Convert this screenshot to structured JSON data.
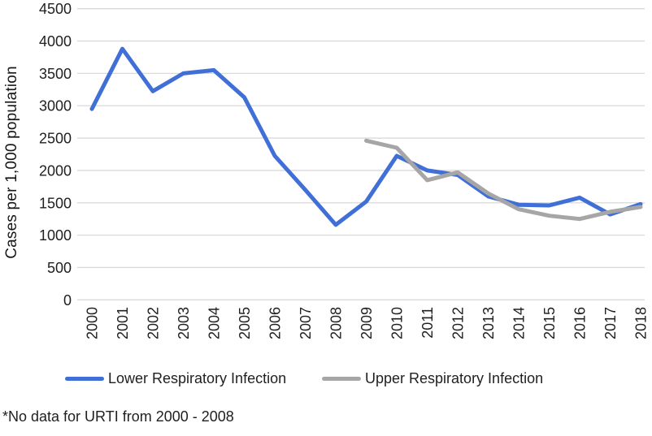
{
  "footnote": "*No data for URTI from 2000 - 2008",
  "colors": {
    "grid": "#d9d9d9",
    "text": "#1f1f1f",
    "background": "#ffffff",
    "lower_series": "#3f6fd7",
    "upper_series": "#a6a6a6"
  },
  "chart_data": {
    "type": "line",
    "title": "",
    "xlabel": "",
    "ylabel": "Cases per 1,000 population",
    "x": [
      2000,
      2001,
      2002,
      2003,
      2004,
      2005,
      2006,
      2007,
      2008,
      2009,
      2010,
      2011,
      2012,
      2013,
      2014,
      2015,
      2016,
      2017,
      2018
    ],
    "ylim": [
      0,
      4500
    ],
    "ytick_step": 500,
    "yticks": [
      0,
      500,
      1000,
      1500,
      2000,
      2500,
      3000,
      3500,
      4000,
      4500
    ],
    "grid": "horizontal-only",
    "legend_position": "bottom",
    "series": [
      {
        "name": "Lower Respiratory Infection",
        "color": "#3f6fd7",
        "values": [
          2950,
          3880,
          3225,
          3500,
          3550,
          3130,
          2225,
          1700,
          1160,
          1520,
          2225,
          2000,
          1930,
          1600,
          1470,
          1460,
          1580,
          1320,
          1480
        ]
      },
      {
        "name": "Upper Respiratory Infection",
        "color": "#a6a6a6",
        "values": [
          null,
          null,
          null,
          null,
          null,
          null,
          null,
          null,
          null,
          2460,
          2350,
          1850,
          1970,
          1645,
          1400,
          1300,
          1250,
          1360,
          1435
        ]
      }
    ]
  }
}
